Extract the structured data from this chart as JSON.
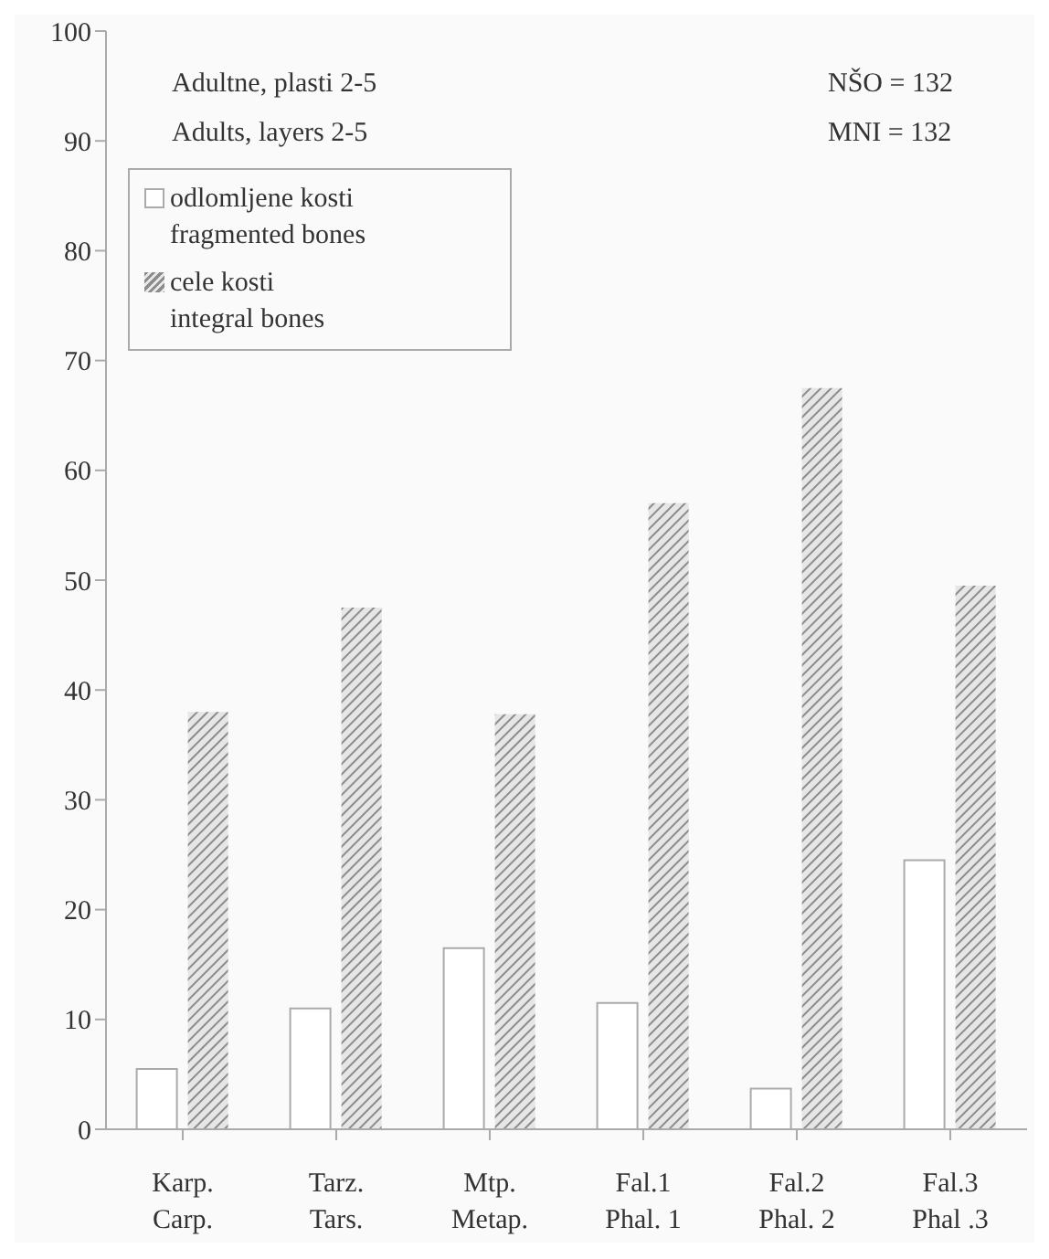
{
  "chart_data": {
    "type": "bar",
    "categories": [
      "Karp.\nCarp.",
      "Tarz.\nTars.",
      "Mtp.\nMetap.",
      "Fal.1\nPhal. 1",
      "Fal.2\nPhal. 2",
      "Fal.3\nPhal .3"
    ],
    "series": [
      {
        "name": "odlomljene kosti\nfragmented bones",
        "color": "#ffffff",
        "values": [
          5.5,
          11,
          16.5,
          11.5,
          3.7,
          24.5
        ]
      },
      {
        "name": "cele kosti\nintegral bones",
        "color": "#8c8c8c",
        "values": [
          38,
          47.5,
          37.8,
          57,
          67.5,
          49.5
        ]
      }
    ],
    "ylim": [
      0,
      100
    ],
    "yticks": [
      0,
      10,
      20,
      30,
      40,
      50,
      60,
      70,
      80,
      90,
      100
    ],
    "grid": false,
    "legend": "top left",
    "annotations": [
      "Adultne, plasti 2-5",
      "Adults, layers 2-5",
      "NŠO = 132",
      "MNI = 132"
    ]
  }
}
